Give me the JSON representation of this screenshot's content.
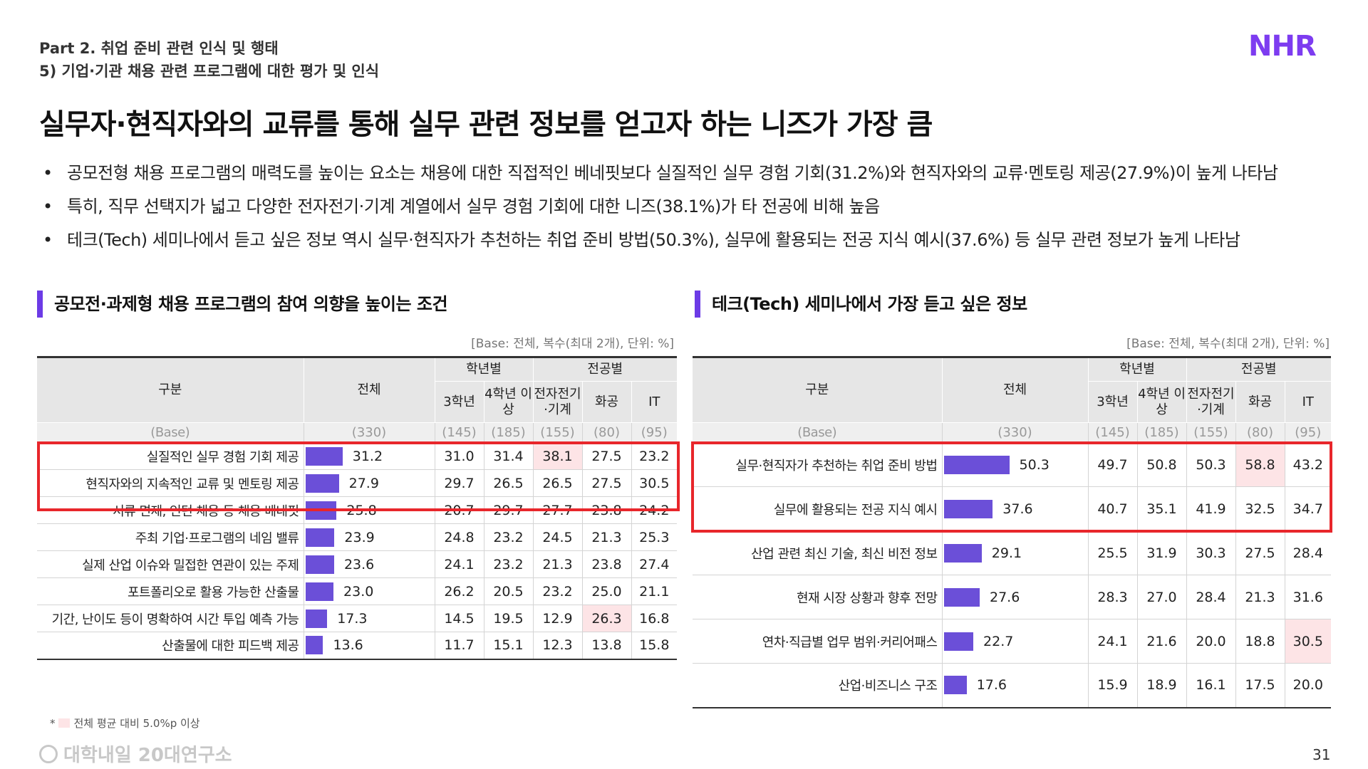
{
  "header": {
    "part": "Part 2. 취업 준비 관련 인식 및 행태",
    "section": "5) 기업·기관 채용 관련 프로그램에 대한 평가 및 인식",
    "logo": "NHR",
    "title": "실무자·현직자와의 교류를 통해 실무 관련 정보를 얻고자 하는 니즈가 가장 큼"
  },
  "bullets": [
    "공모전형 채용 프로그램의 매력도를 높이는 요소는 채용에 대한 직접적인 베네핏보다 실질적인 실무 경험 기회(31.2%)와 현직자와의 교류·멘토링 제공(27.9%)이 높게 나타남",
    "특히, 직무 선택지가 넓고 다양한 전자전기·기계 계열에서 실무 경험 기회에 대한 니즈(38.1%)가 타 전공에 비해 높음",
    "테크(Tech) 세미나에서 듣고 싶은 정보 역시 실무·현직자가 추천하는 취업 준비 방법(50.3%), 실무에 활용되는 전공 지식 예시(37.6%) 등 실무 관련 정보가 높게 나타남"
  ],
  "left": {
    "title": "공모전·과제형 채용 프로그램의 참여 의향을 높이는 조건",
    "base_note": "[Base: 전체, 복수(최대 2개), 단위: %]",
    "head": {
      "category": "구분",
      "total": "전체",
      "grade_group": "학년별",
      "major_group": "전공별",
      "cols": [
        "3학년",
        "4학년 이상",
        "전자전기·기계",
        "화공",
        "IT"
      ]
    },
    "base_row": {
      "label": "(Base)",
      "total": "(330)",
      "cols": [
        "(145)",
        "(185)",
        "(155)",
        "(80)",
        "(95)"
      ]
    },
    "rows": [
      {
        "label": "실질적인 실무 경험 기회 제공",
        "total": "31.2",
        "bar": 31.2,
        "cols": [
          "31.0",
          "31.4",
          "38.1",
          "27.5",
          "23.2"
        ],
        "hl": [
          2
        ]
      },
      {
        "label": "현직자와의 지속적인 교류 및 멘토링 제공",
        "total": "27.9",
        "bar": 27.9,
        "cols": [
          "29.7",
          "26.5",
          "26.5",
          "27.5",
          "30.5"
        ],
        "hl": []
      },
      {
        "label": "서류 면제, 인턴 채용 등 채용 베네핏",
        "total": "25.8",
        "bar": 25.8,
        "cols": [
          "20.7",
          "29.7",
          "27.7",
          "23.8",
          "24.2"
        ],
        "hl": []
      },
      {
        "label": "주최 기업·프로그램의 네임 밸류",
        "total": "23.9",
        "bar": 23.9,
        "cols": [
          "24.8",
          "23.2",
          "24.5",
          "21.3",
          "25.3"
        ],
        "hl": []
      },
      {
        "label": "실제 산업 이슈와 밀접한 연관이 있는 주제",
        "total": "23.6",
        "bar": 23.6,
        "cols": [
          "24.1",
          "23.2",
          "21.3",
          "23.8",
          "27.4"
        ],
        "hl": []
      },
      {
        "label": "포트폴리오로 활용 가능한 산출물",
        "total": "23.0",
        "bar": 23.0,
        "cols": [
          "26.2",
          "20.5",
          "23.2",
          "25.0",
          "21.1"
        ],
        "hl": []
      },
      {
        "label": "기간, 난이도 등이 명확하여 시간 투입 예측 가능",
        "total": "17.3",
        "bar": 17.3,
        "cols": [
          "14.5",
          "19.5",
          "12.9",
          "26.3",
          "16.8"
        ],
        "hl": [
          3
        ]
      },
      {
        "label": "산출물에 대한 피드백 제공",
        "total": "13.6",
        "bar": 13.6,
        "cols": [
          "11.7",
          "15.1",
          "12.3",
          "13.8",
          "15.8"
        ],
        "hl": []
      }
    ]
  },
  "right": {
    "title": "테크(Tech) 세미나에서 가장 듣고 싶은 정보",
    "base_note": "[Base: 전체, 복수(최대 2개), 단위: %]",
    "head": {
      "category": "구분",
      "total": "전체",
      "grade_group": "학년별",
      "major_group": "전공별",
      "cols": [
        "3학년",
        "4학년 이상",
        "전자전기·기계",
        "화공",
        "IT"
      ]
    },
    "base_row": {
      "label": "(Base)",
      "total": "(330)",
      "cols": [
        "(145)",
        "(185)",
        "(155)",
        "(80)",
        "(95)"
      ]
    },
    "rows": [
      {
        "label": "실무·현직자가 추천하는 취업 준비 방법",
        "total": "50.3",
        "bar": 50.3,
        "cols": [
          "49.7",
          "50.8",
          "50.3",
          "58.8",
          "43.2"
        ],
        "hl": [
          3
        ]
      },
      {
        "label": "실무에 활용되는 전공 지식 예시",
        "total": "37.6",
        "bar": 37.6,
        "cols": [
          "40.7",
          "35.1",
          "41.9",
          "32.5",
          "34.7"
        ],
        "hl": []
      },
      {
        "label": "산업 관련 최신 기술, 최신 비전 정보",
        "total": "29.1",
        "bar": 29.1,
        "cols": [
          "25.5",
          "31.9",
          "30.3",
          "27.5",
          "28.4"
        ],
        "hl": []
      },
      {
        "label": "현재 시장 상황과 향후 전망",
        "total": "27.6",
        "bar": 27.6,
        "cols": [
          "28.3",
          "27.0",
          "28.4",
          "21.3",
          "31.6"
        ],
        "hl": []
      },
      {
        "label": "연차·직급별 업무 범위·커리어패스",
        "total": "22.7",
        "bar": 22.7,
        "cols": [
          "24.1",
          "21.6",
          "20.0",
          "18.8",
          "30.5"
        ],
        "hl": [
          4
        ]
      },
      {
        "label": "산업·비즈니스 구조",
        "total": "17.6",
        "bar": 17.6,
        "cols": [
          "15.9",
          "18.9",
          "16.1",
          "17.5",
          "20.0"
        ],
        "hl": []
      }
    ]
  },
  "footnote": "전체 평균 대비 5.0%p 이상",
  "footer_logo": "대학내일 20대연구소",
  "page_number": "31",
  "colors": {
    "accent": "#6c3be6",
    "bar": "#6b4fd8",
    "highlight": "#fde4e6",
    "redbox": "#e8262b"
  }
}
